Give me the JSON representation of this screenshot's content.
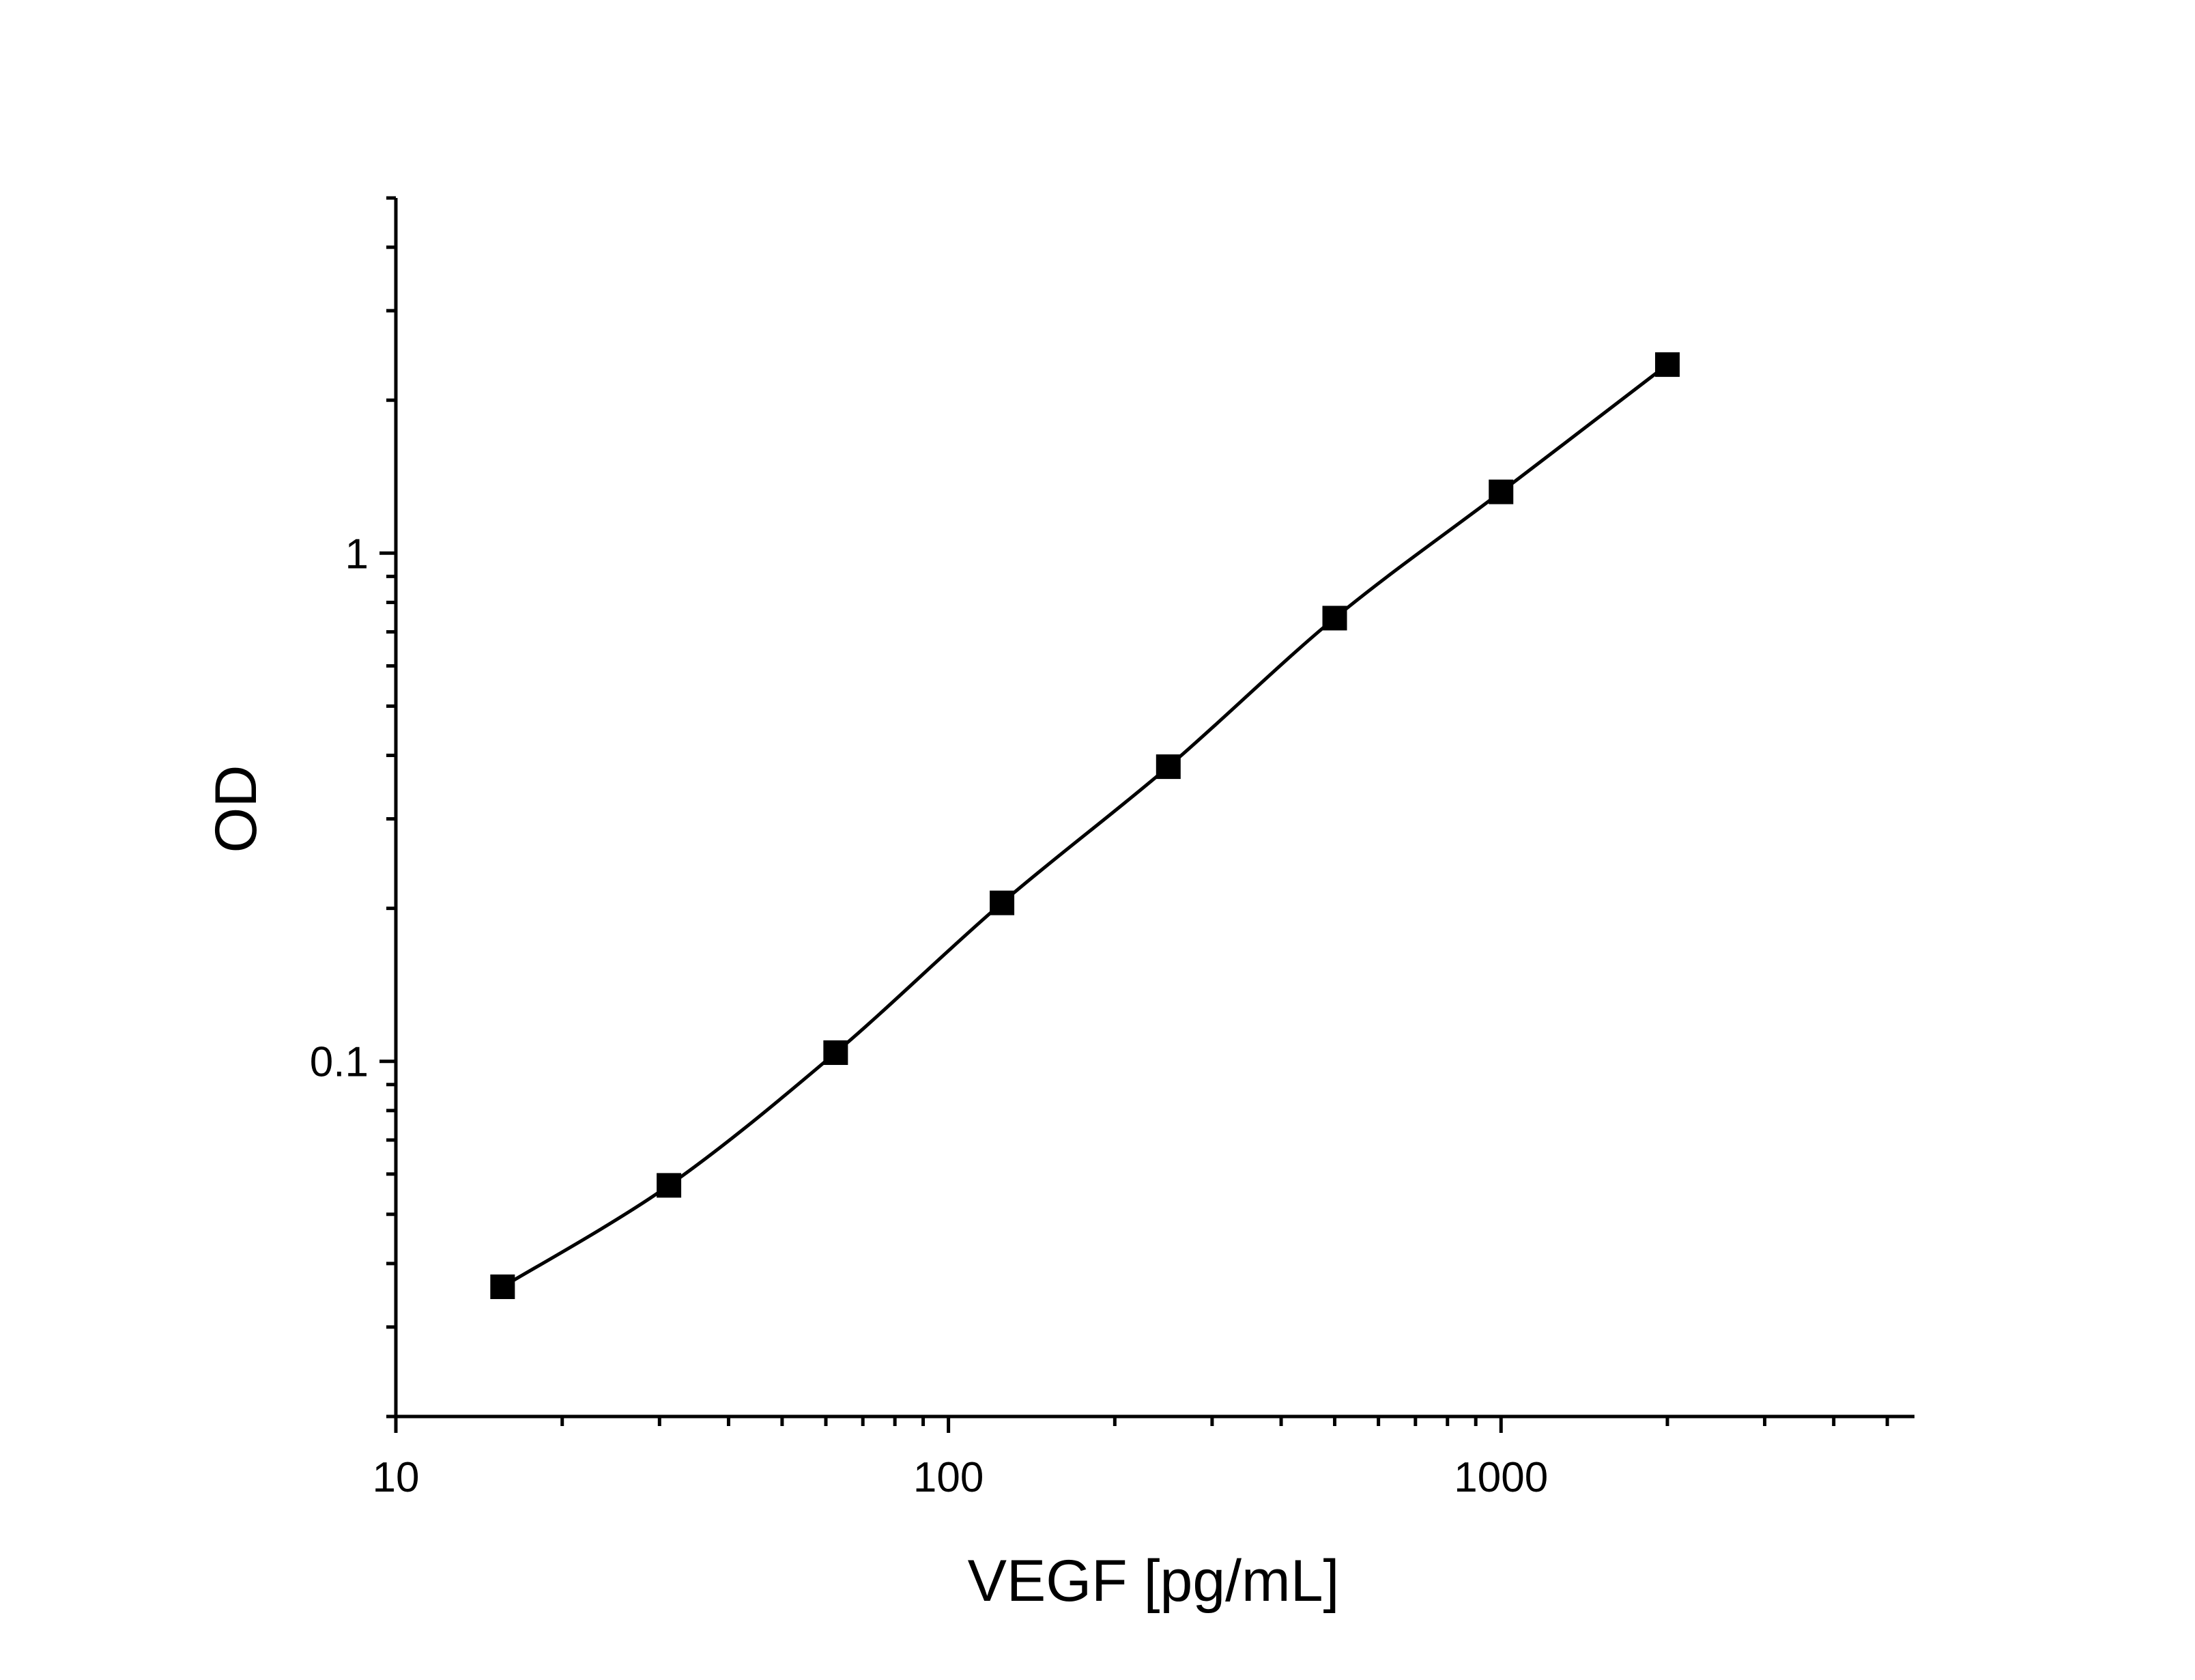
{
  "chart_data": {
    "type": "scatter",
    "title": "",
    "xlabel": "VEGF [pg/mL]",
    "ylabel": "OD",
    "xscale": "log",
    "yscale": "log",
    "xlim": [
      10,
      5600
    ],
    "ylim": [
      0.02,
      5
    ],
    "x_ticks": [
      {
        "value": 10,
        "label": "10"
      },
      {
        "value": 100,
        "label": "100"
      },
      {
        "value": 1000,
        "label": "1000"
      }
    ],
    "y_ticks": [
      {
        "value": 0.1,
        "label": "0.1"
      },
      {
        "value": 1,
        "label": "1"
      }
    ],
    "grid": false,
    "legend": "none",
    "series": [
      {
        "marker": "square",
        "fitted_curve": true,
        "color": "#000000",
        "x": [
          15.6,
          31.2,
          62.5,
          125,
          250,
          500,
          1000,
          2000
        ],
        "y": [
          0.036,
          0.057,
          0.104,
          0.205,
          0.38,
          0.745,
          1.32,
          2.35
        ]
      }
    ]
  }
}
